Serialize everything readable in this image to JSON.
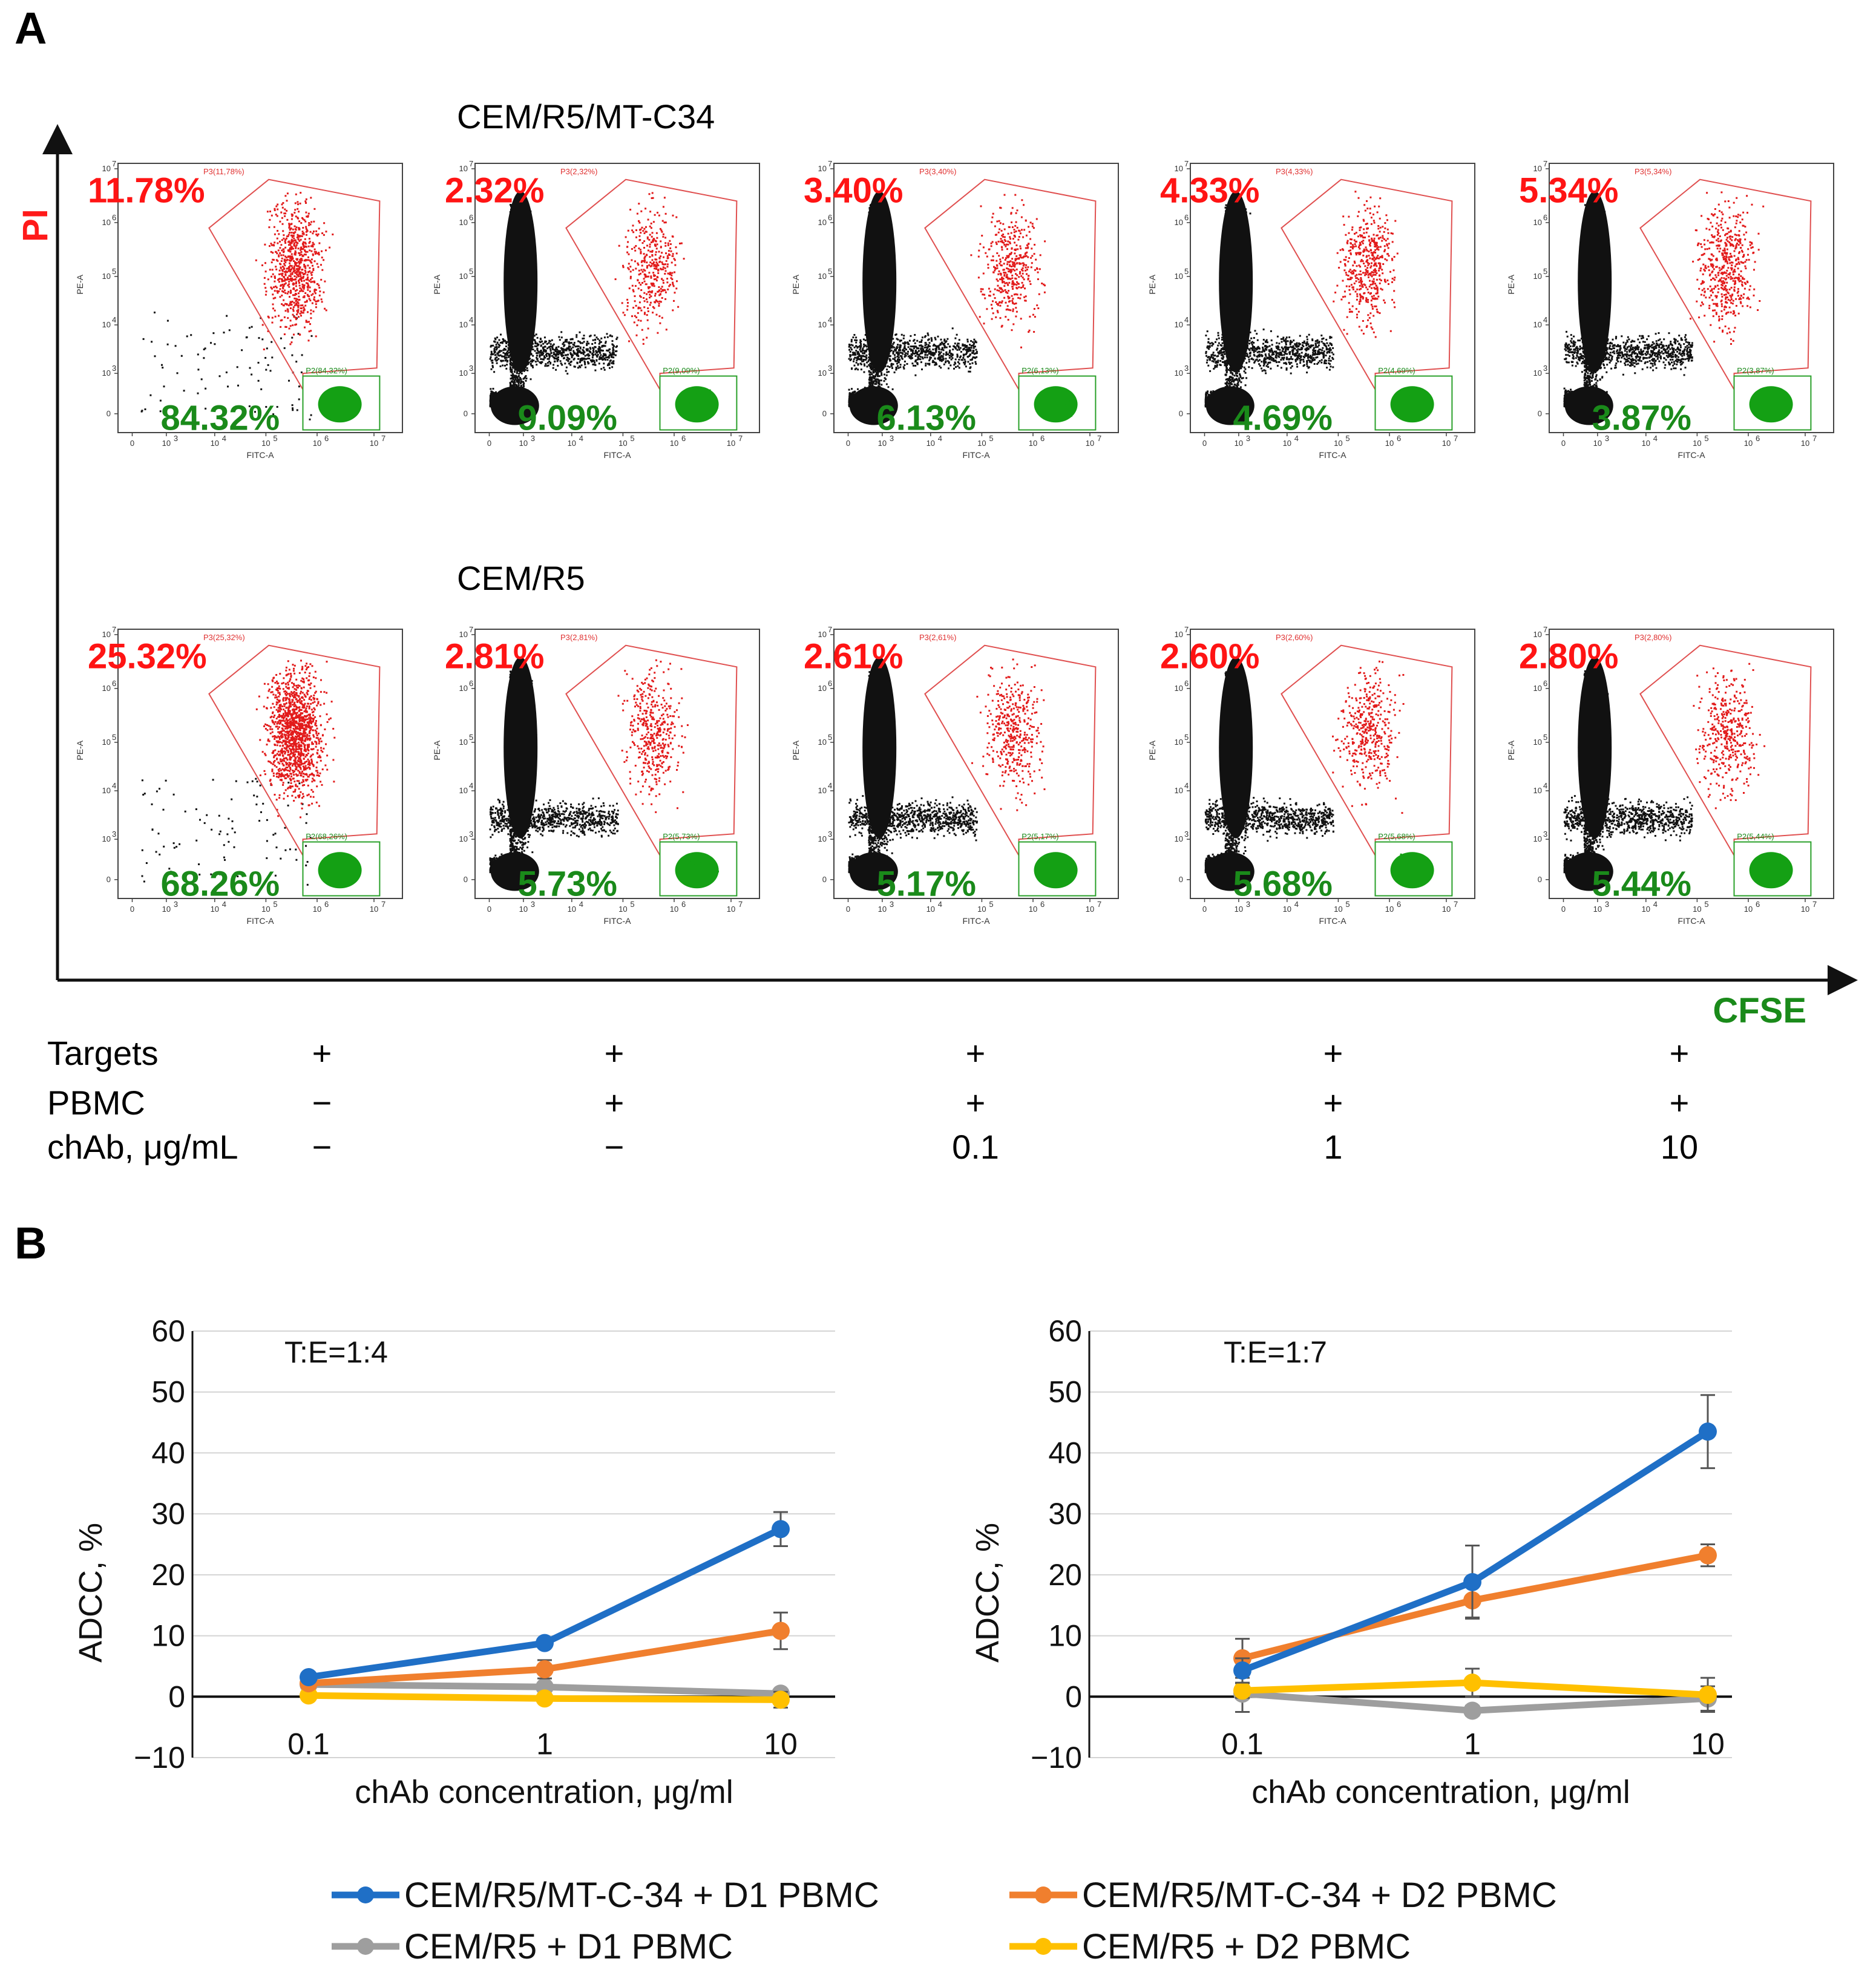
{
  "panel_labels": {
    "a": "A",
    "b": "B"
  },
  "axis_titles": {
    "y": "PI",
    "x": "CFSE"
  },
  "flow": {
    "rows": [
      {
        "title": "CEM/R5/MT-C34",
        "plots": [
          {
            "p3_label": "P3(11,78%)",
            "p2_label": "P2(84,32%)",
            "red_pct": "11.78%",
            "green_pct": "84.32%",
            "p3": 0.1178,
            "p2": 0.8432
          },
          {
            "p3_label": "P3(2,32%)",
            "p2_label": "P2(9,09%)",
            "red_pct": "2.32%",
            "green_pct": "9.09%",
            "p3": 0.0232,
            "p2": 0.0909
          },
          {
            "p3_label": "P3(3,40%)",
            "p2_label": "P2(6,13%)",
            "red_pct": "3.40%",
            "green_pct": "6.13%",
            "p3": 0.034,
            "p2": 0.0613
          },
          {
            "p3_label": "P3(4,33%)",
            "p2_label": "P2(4,69%)",
            "red_pct": "4.33%",
            "green_pct": "4.69%",
            "p3": 0.0433,
            "p2": 0.0469
          },
          {
            "p3_label": "P3(5,34%)",
            "p2_label": "P2(3,87%)",
            "red_pct": "5.34%",
            "green_pct": "3.87%",
            "p3": 0.0534,
            "p2": 0.0387
          }
        ]
      },
      {
        "title": "CEM/R5",
        "plots": [
          {
            "p3_label": "P3(25,32%)",
            "p2_label": "P2(68,26%)",
            "red_pct": "25.32%",
            "green_pct": "68.26%",
            "p3": 0.2532,
            "p2": 0.6826
          },
          {
            "p3_label": "P3(2,81%)",
            "p2_label": "P2(5,73%)",
            "red_pct": "2.81%",
            "green_pct": "5.73%",
            "p3": 0.0281,
            "p2": 0.0573
          },
          {
            "p3_label": "P3(2,61%)",
            "p2_label": "P2(5,17%)",
            "red_pct": "2.61%",
            "green_pct": "5.17%",
            "p3": 0.0261,
            "p2": 0.0517
          },
          {
            "p3_label": "P3(2,60%)",
            "p2_label": "P2(5,68%)",
            "red_pct": "2.60%",
            "green_pct": "5.68%",
            "p3": 0.026,
            "p2": 0.0568
          },
          {
            "p3_label": "P3(2,80%)",
            "p2_label": "P2(5,44%)",
            "red_pct": "2.80%",
            "green_pct": "5.44%",
            "p3": 0.028,
            "p2": 0.0544
          }
        ]
      }
    ],
    "x_axis_label": "FITC-A",
    "y_axis_label": "PE-A",
    "x_ticks": [
      "0",
      "10",
      "10",
      "10",
      "10",
      "10"
    ],
    "x_tick_exps": [
      "",
      "3",
      "4",
      "5",
      "6",
      "7"
    ],
    "y_ticks": [
      "0",
      "10",
      "10",
      "10",
      "10",
      "10"
    ],
    "y_tick_exps": [
      "",
      "3",
      "4",
      "5",
      "6",
      "7"
    ]
  },
  "conditions": {
    "row_labels": [
      "Targets",
      "PBMC",
      "chAb, μg/mL"
    ],
    "columns": [
      [
        "+",
        "−",
        "−"
      ],
      [
        "+",
        "+",
        "−"
      ],
      [
        "+",
        "+",
        "0.1"
      ],
      [
        "+",
        "+",
        "1"
      ],
      [
        "+",
        "+",
        "10"
      ]
    ]
  },
  "chart_data": [
    {
      "type": "line",
      "title": "T:E=1:4",
      "xlabel": "chAb concentration, μg/ml",
      "ylabel": "ADCC, %",
      "categories": [
        "0.1",
        "1",
        "10"
      ],
      "ylim": [
        -10,
        60
      ],
      "yticks": [
        "−10",
        "0",
        "10",
        "20",
        "30",
        "40",
        "50",
        "60"
      ],
      "series": [
        {
          "name": "CEM/R5/MT-C-34 + D1 PBMC",
          "color": "#1f6fc6",
          "values": [
            3.2,
            8.8,
            27.5
          ],
          "errors": [
            0.5,
            0.6,
            2.8
          ]
        },
        {
          "name": "CEM/R5/MT-C-34 + D2 PBMC",
          "color": "#f07f2e",
          "values": [
            2.2,
            4.5,
            10.8
          ],
          "errors": [
            0.4,
            1.5,
            3.0
          ]
        },
        {
          "name": "CEM/R5 + D1 PBMC",
          "color": "#9e9e9e",
          "values": [
            2.0,
            1.6,
            0.5
          ],
          "errors": [
            0.4,
            0.5,
            0.5
          ]
        },
        {
          "name": "CEM/R5 + D2 PBMC",
          "color": "#ffc000",
          "values": [
            0.2,
            -0.3,
            -0.5
          ],
          "errors": [
            0.3,
            0.5,
            1.3
          ]
        }
      ]
    },
    {
      "type": "line",
      "title": "T:E=1:7",
      "xlabel": "chAb concentration, μg/ml",
      "ylabel": "ADCC, %",
      "categories": [
        "0.1",
        "1",
        "10"
      ],
      "ylim": [
        -10,
        60
      ],
      "yticks": [
        "−10",
        "0",
        "10",
        "20",
        "30",
        "40",
        "50",
        "60"
      ],
      "series": [
        {
          "name": "CEM/R5/MT-C-34 + D1 PBMC",
          "color": "#1f6fc6",
          "values": [
            4.3,
            18.8,
            43.5
          ],
          "errors": [
            2.0,
            6.0,
            6.0
          ]
        },
        {
          "name": "CEM/R5/MT-C-34 + D2 PBMC",
          "color": "#f07f2e",
          "values": [
            6.3,
            15.8,
            23.2
          ],
          "errors": [
            3.2,
            2.8,
            1.8
          ]
        },
        {
          "name": "CEM/R5 + D1 PBMC",
          "color": "#9e9e9e",
          "values": [
            0.5,
            -2.3,
            -0.3
          ],
          "errors": [
            3.0,
            0.8,
            2.0
          ]
        },
        {
          "name": "CEM/R5 + D2 PBMC",
          "color": "#ffc000",
          "values": [
            1.0,
            2.3,
            0.3
          ],
          "errors": [
            1.2,
            2.3,
            2.8
          ]
        }
      ]
    }
  ],
  "legend": [
    {
      "label": "CEM/R5/MT-C-34 + D1 PBMC",
      "color": "#1f6fc6"
    },
    {
      "label": "CEM/R5/MT-C-34 + D2 PBMC",
      "color": "#f07f2e"
    },
    {
      "label": "CEM/R5 + D1 PBMC",
      "color": "#9e9e9e"
    },
    {
      "label": "CEM/R5 + D2 PBMC",
      "color": "#ffc000"
    }
  ]
}
